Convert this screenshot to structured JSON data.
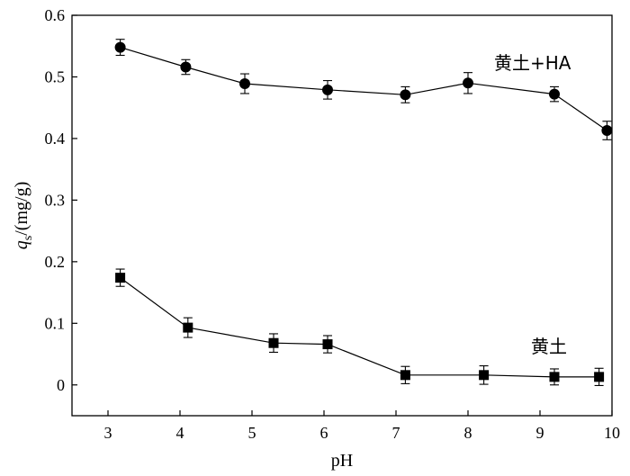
{
  "chart_data": {
    "type": "line",
    "xlabel": "pH",
    "ylabel": {
      "base": "q",
      "sub": "s",
      "rest": "/(mg/g)"
    },
    "xlim": [
      2.5,
      10
    ],
    "ylim": [
      -0.05,
      0.6
    ],
    "xticks": [
      3,
      4,
      5,
      6,
      7,
      8,
      9,
      10
    ],
    "yticks": [
      0,
      0.1,
      0.2,
      0.3,
      0.4,
      0.5,
      0.6
    ],
    "ytick_labels": [
      "0",
      "0.1",
      "0.2",
      "0.3",
      "0.4",
      "0.5",
      "0.6"
    ],
    "grid": false,
    "legend": "none",
    "series": [
      {
        "name": "黄土+HA",
        "marker": "circle",
        "x": [
          3.17,
          4.08,
          4.9,
          6.05,
          7.13,
          8.0,
          9.2,
          9.93
        ],
        "y": [
          0.548,
          0.516,
          0.489,
          0.479,
          0.471,
          0.49,
          0.472,
          0.413
        ],
        "err": [
          0.013,
          0.012,
          0.016,
          0.015,
          0.013,
          0.017,
          0.012,
          0.015
        ]
      },
      {
        "name": "黄土",
        "marker": "square",
        "x": [
          3.17,
          4.11,
          5.3,
          6.05,
          7.13,
          8.22,
          9.2,
          9.82
        ],
        "y": [
          0.174,
          0.093,
          0.068,
          0.066,
          0.016,
          0.016,
          0.013,
          0.013
        ],
        "err": [
          0.014,
          0.016,
          0.015,
          0.014,
          0.014,
          0.015,
          0.013,
          0.014
        ]
      }
    ]
  }
}
